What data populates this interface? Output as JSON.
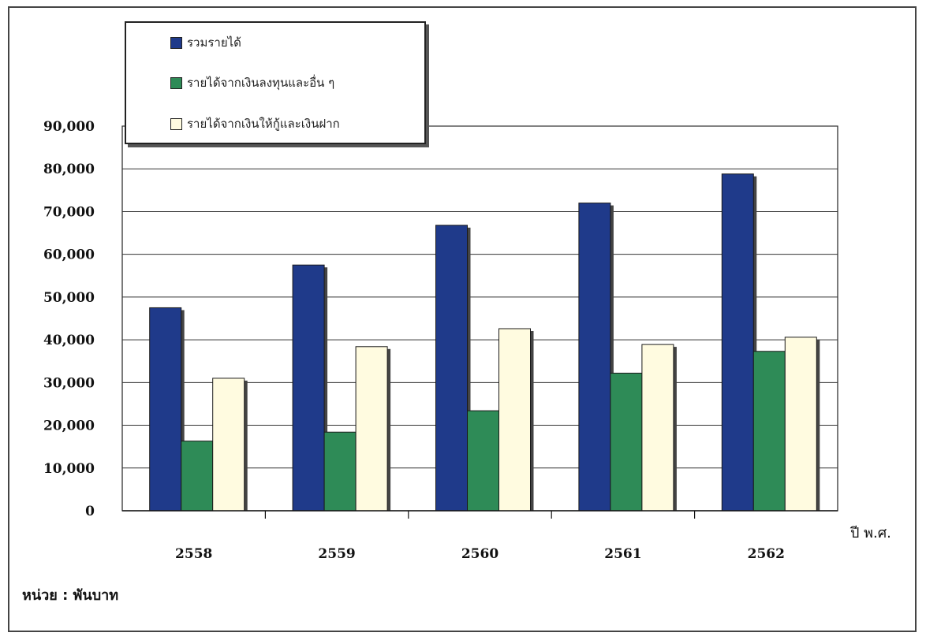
{
  "chart_data": {
    "type": "bar",
    "categories": [
      "2558",
      "2559",
      "2560",
      "2561",
      "2562"
    ],
    "series": [
      {
        "name": "รวมรายได้",
        "color": "#1f3a8a",
        "values": [
          47500,
          57500,
          66800,
          72000,
          78800
        ]
      },
      {
        "name": "รายได้จากเงินลงทุนและอื่น ๆ",
        "color": "#2e8b57",
        "values": [
          16300,
          18400,
          23400,
          32200,
          37300
        ]
      },
      {
        "name": "รายได้จากเงินให้กู้และเงินฝาก",
        "color": "#fffbe0",
        "values": [
          31000,
          38400,
          42600,
          38900,
          40600
        ]
      }
    ],
    "yticks": [
      "0",
      "10,000",
      "20,000",
      "30,000",
      "40,000",
      "50,000",
      "60,000",
      "70,000",
      "80,000",
      "90,000"
    ],
    "ylim": [
      0,
      90000
    ],
    "xlabel": "ปี พ.ศ.",
    "ylabel": "",
    "grid": true,
    "legend_position": "top-left"
  },
  "unit_note": "หน่วย : พันบาท"
}
